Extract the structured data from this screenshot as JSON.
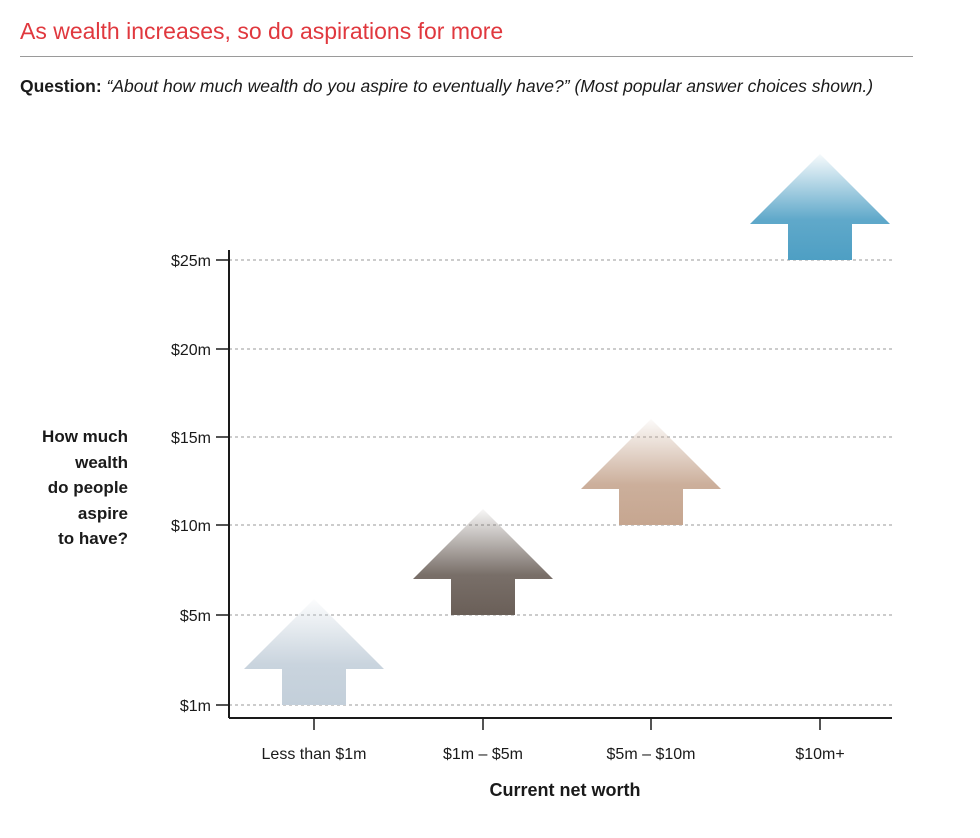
{
  "header": {
    "title": "As wealth increases, so do aspirations for more",
    "question_label": "Question:",
    "question_text": "“About how much wealth do you aspire to eventually have?” (Most popular answer choices shown.)"
  },
  "chart_data": {
    "type": "bar",
    "categories": [
      "Less than $1m",
      "$1m – $5m",
      "$5m – $10m",
      "$10m+"
    ],
    "values": [
      1,
      5,
      10,
      25
    ],
    "y_tick_values": [
      1,
      5,
      10,
      15,
      20,
      25
    ],
    "y_tick_labels": [
      "$1m",
      "$5m",
      "$10m",
      "$15m",
      "$20m",
      "$25m"
    ],
    "ylabel_lines": [
      "How much",
      "wealth",
      "do people",
      "aspire",
      "to have?"
    ],
    "xlabel": "Current net worth",
    "ylim": [
      1,
      25
    ],
    "grid": true,
    "marker": "up-arrow",
    "colors": [
      "#c3cfda",
      "#6a5f58",
      "#c6a690",
      "#4e9fc4"
    ]
  }
}
